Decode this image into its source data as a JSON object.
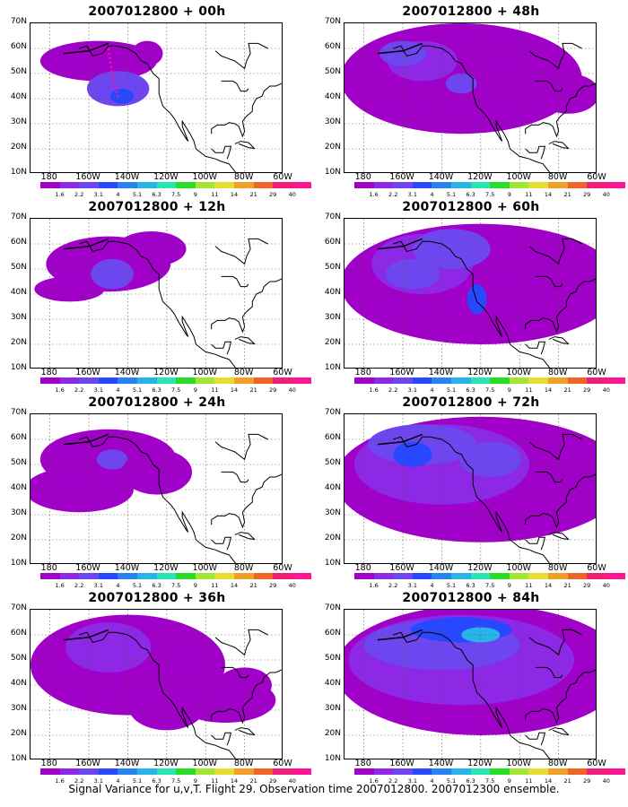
{
  "caption": "Signal Variance for u,v,T. Flight 29. Observation time 2007012800. 2007012300 ensemble.",
  "lat_labels": [
    "70N",
    "60N",
    "50N",
    "40N",
    "30N",
    "20N",
    "10N"
  ],
  "lon_labels": [
    "180",
    "160W",
    "140W",
    "120W",
    "100W",
    "80W",
    "60W"
  ],
  "colorbar": {
    "labels": [
      "1.6",
      "2.2",
      "3.1",
      "4",
      "5.1",
      "6.3",
      "7.5",
      "9",
      "11",
      "14",
      "21",
      "29",
      "40"
    ],
    "colors": [
      "#a000c8",
      "#8c28e6",
      "#6e46f0",
      "#2848ff",
      "#2882f0",
      "#28b4e6",
      "#28e6b4",
      "#28dc28",
      "#a0e632",
      "#e6dc32",
      "#f0a028",
      "#f06428",
      "#f01e78",
      "#ff1493"
    ]
  },
  "panels": [
    {
      "title": "2007012800 + 00h",
      "lead": 0
    },
    {
      "title": "2007012800 + 48h",
      "lead": 48
    },
    {
      "title": "2007012800 + 12h",
      "lead": 12
    },
    {
      "title": "2007012800 + 60h",
      "lead": 60
    },
    {
      "title": "2007012800 + 24h",
      "lead": 24
    },
    {
      "title": "2007012800 + 72h",
      "lead": 72
    },
    {
      "title": "2007012800 + 36h",
      "lead": 36
    },
    {
      "title": "2007012800 + 84h",
      "lead": 84
    }
  ]
}
